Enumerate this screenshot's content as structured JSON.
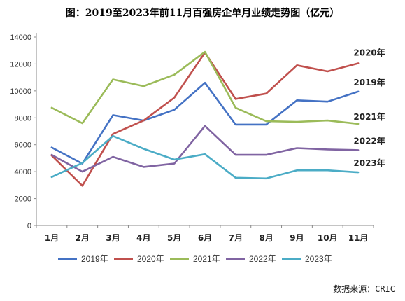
{
  "title": "图：2019至2023年前11月百强房企单月业绩走势图（亿元）",
  "source": "数据来源：CRIC",
  "chart_data": {
    "type": "line",
    "title": "图：2019至2023年前11月百强房企单月业绩走势图（亿元）",
    "xlabel": "",
    "ylabel": "",
    "categories": [
      "1月",
      "2月",
      "3月",
      "4月",
      "5月",
      "6月",
      "7月",
      "8月",
      "9月",
      "10月",
      "11月"
    ],
    "ylim": [
      0,
      14000
    ],
    "yticks": [
      0,
      2000,
      4000,
      6000,
      8000,
      10000,
      12000,
      14000
    ],
    "grid": false,
    "legend": "bottom",
    "series": [
      {
        "name": "2019年",
        "color": "#4472C4",
        "end_label": "2019年",
        "values": [
          5800,
          4600,
          8200,
          7800,
          8600,
          10600,
          7500,
          7500,
          9300,
          9200,
          9950
        ]
      },
      {
        "name": "2020年",
        "color": "#C0504D",
        "end_label": "2020年",
        "values": [
          5200,
          2950,
          6800,
          7800,
          9500,
          12850,
          9400,
          9800,
          11900,
          11450,
          12050
        ]
      },
      {
        "name": "2021年",
        "color": "#9BBB59",
        "end_label": "2021年",
        "values": [
          8750,
          7600,
          10850,
          10350,
          11200,
          12900,
          8750,
          7750,
          7700,
          7800,
          7550
        ]
      },
      {
        "name": "2022年",
        "color": "#8064A2",
        "end_label": "2022年",
        "values": [
          5250,
          4000,
          5100,
          4350,
          4600,
          7400,
          5250,
          5250,
          5750,
          5650,
          5600
        ]
      },
      {
        "name": "2023年",
        "color": "#4BACC6",
        "end_label": "2023年",
        "values": [
          3600,
          4650,
          6650,
          5700,
          4900,
          5300,
          3550,
          3500,
          4100,
          4100,
          3950
        ]
      }
    ]
  }
}
